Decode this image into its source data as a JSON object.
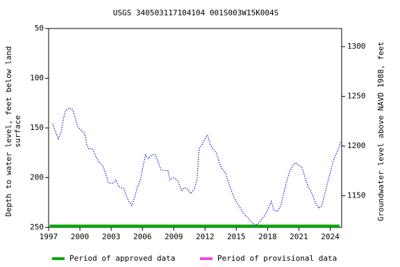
{
  "chart_data": {
    "type": "line",
    "title": "USGS 340503117104104 001S003W15K004S",
    "ylabel": [
      "Depth to water level, feet below land",
      "surface"
    ],
    "y2label": "Groundwater level above NAVD 1988, feet",
    "xlim": [
      1997,
      2025.1
    ],
    "xticks": [
      1997,
      2000,
      2003,
      2006,
      2009,
      2012,
      2015,
      2018,
      2021,
      2024
    ],
    "ylim": [
      50,
      250
    ],
    "yticks": [
      50,
      100,
      150,
      200,
      250
    ],
    "y2lim": [
      1318.2,
      1118.2
    ],
    "y2ticks": [
      1150,
      1200,
      1250,
      1300
    ],
    "series": [
      {
        "color": "#0000cc",
        "x": [
          1997.4,
          1997.66,
          1997.93,
          1998.2,
          1998.46,
          1998.66,
          1999.0,
          1999.33,
          1999.53,
          1999.8,
          2000.2,
          2000.46,
          2000.66,
          2000.86,
          2001.2,
          2001.46,
          2001.8,
          2002.2,
          2002.46,
          2002.73,
          2003.0,
          2003.25,
          2003.45,
          2003.72,
          2004.0,
          2004.25,
          2004.45,
          2004.7,
          2004.98,
          2005.24,
          2005.5,
          2005.78,
          2006.04,
          2006.3,
          2006.57,
          2006.9,
          2007.24,
          2007.5,
          2007.77,
          2008.1,
          2008.44,
          2008.64,
          2008.97,
          2009.3,
          2009.5,
          2009.77,
          2010.03,
          2010.3,
          2010.63,
          2010.96,
          2011.23,
          2011.43,
          2011.7,
          2011.96,
          2012.23,
          2012.5,
          2012.76,
          2013.1,
          2013.36,
          2013.62,
          2013.95,
          2014.28,
          2014.55,
          2014.82,
          2015.08,
          2015.35,
          2015.62,
          2015.88,
          2016.15,
          2016.48,
          2016.8,
          2017.08,
          2017.41,
          2017.74,
          2018.0,
          2018.34,
          2018.6,
          2018.94,
          2019.27,
          2019.54,
          2019.8,
          2020.14,
          2020.4,
          2020.67,
          2021.0,
          2021.27,
          2021.6,
          2021.87,
          2022.13,
          2022.4,
          2022.66,
          2022.93,
          2023.2,
          2023.46,
          2023.73,
          2024.0,
          2024.27,
          2024.53,
          2024.8,
          2025.0
        ],
        "values": [
          145.8,
          154,
          161,
          154,
          139,
          132,
          130,
          132,
          139,
          149,
          153,
          156,
          167,
          171,
          171,
          177,
          184,
          188,
          196,
          205,
          206,
          205,
          202,
          209,
          210,
          211.5,
          218.5,
          224,
          228,
          220,
          210,
          203,
          189,
          177,
          181,
          177,
          177,
          184,
          192,
          193,
          193,
          202,
          200,
          202,
          206,
          213,
          210,
          211.5,
          216,
          211.5,
          202,
          171,
          167,
          161,
          157,
          167,
          171,
          175,
          185,
          191,
          195,
          206,
          214,
          221,
          225.5,
          230,
          235,
          238,
          241,
          245,
          248,
          246.5,
          242,
          238,
          232.5,
          224,
          232.5,
          234,
          228,
          216,
          205,
          193,
          188,
          185,
          188,
          189,
          200,
          209,
          213,
          220,
          227,
          231,
          228,
          217,
          206,
          195,
          184,
          177,
          171,
          164
        ]
      }
    ],
    "approved_period": {
      "start": 1997.1,
      "end": 2024.9,
      "color": "#00aa00"
    },
    "legend": [
      {
        "name": "Period of approved data",
        "color": "#00aa00"
      },
      {
        "name": "Period of provisional data",
        "color": "#ee44ee"
      }
    ]
  }
}
